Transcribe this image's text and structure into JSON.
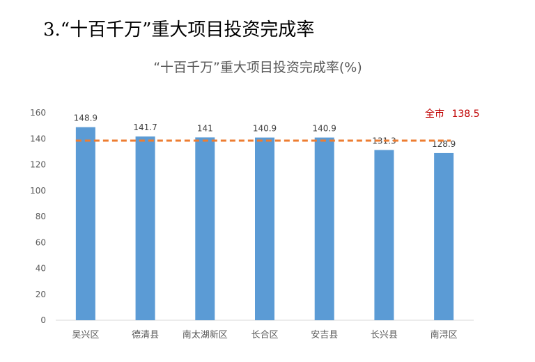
{
  "slide": {
    "title": "3.“十百千万”重大项目投资完成率"
  },
  "chart_data": {
    "type": "bar",
    "title": "“十百千万”重大项目投资完成率(%)",
    "xlabel": "",
    "ylabel": "",
    "categories": [
      "吴兴区",
      "德清县",
      "南太湖新区",
      "长合区",
      "安吉县",
      "长兴县",
      "南浔区"
    ],
    "values": [
      148.9,
      141.7,
      141,
      140.9,
      140.9,
      131.3,
      128.9
    ],
    "value_labels": [
      "148.9",
      "141.7",
      "141",
      "140.9",
      "140.9",
      "131.3",
      "128.9"
    ],
    "ylim": [
      0,
      160
    ],
    "yticks": [
      0,
      20,
      40,
      60,
      80,
      100,
      120,
      140,
      160
    ],
    "ytick_labels": [
      "0",
      "20",
      "40",
      "60",
      "80",
      "100",
      "120",
      "140",
      "160"
    ],
    "grid": false,
    "bar_color": "#5b9bd5",
    "reference_line": {
      "label_prefix": "全市",
      "label_value": "138.5",
      "value": 138.5,
      "color": "#ed7d31",
      "style": "dashed"
    }
  }
}
